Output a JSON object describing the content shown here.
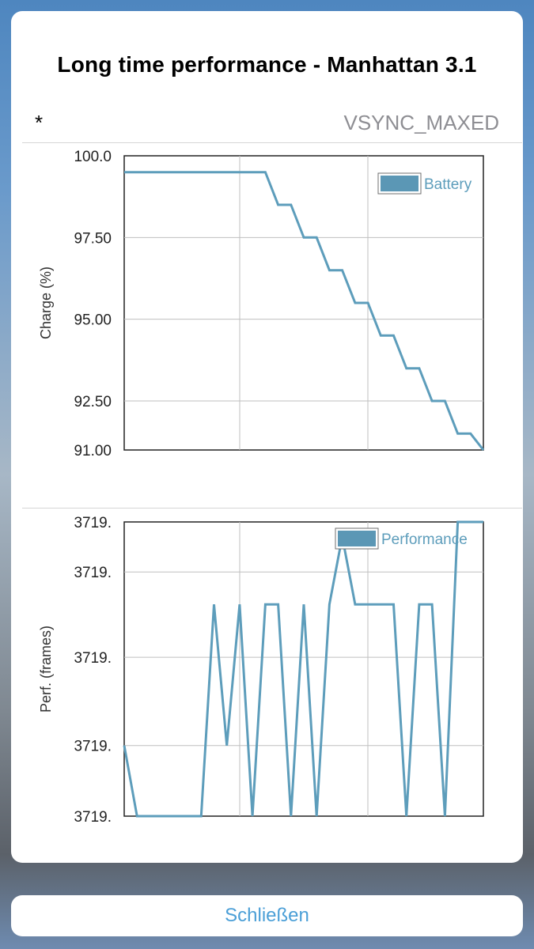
{
  "dialog": {
    "title": "Long time performance - Manhattan 3.1",
    "row_left": "*",
    "row_right": "VSYNC_MAXED",
    "close_label": "Schließen"
  },
  "colors": {
    "series": "#5d9dbb",
    "legend_fill": "#5b97b5",
    "accent": "#4b9fd7"
  },
  "chart_data": [
    {
      "type": "line",
      "ylabel": "Charge (%)",
      "ylim": [
        91.0,
        100.0
      ],
      "yticks": [
        "100.0",
        "97.50",
        "95.00",
        "92.50",
        "91.00"
      ],
      "ytick_values": [
        100.0,
        97.5,
        95.0,
        92.5,
        91.0
      ],
      "grid": true,
      "legend": "top-right",
      "series": [
        {
          "name": "Battery",
          "x": [
            0,
            11,
            12,
            13,
            14,
            15,
            16,
            17,
            18,
            19,
            20,
            21,
            22,
            23,
            24,
            25,
            26,
            27,
            28
          ],
          "y": [
            99.5,
            99.5,
            98.5,
            98.5,
            97.5,
            97.5,
            96.5,
            96.5,
            95.5,
            95.5,
            94.5,
            94.5,
            93.5,
            93.5,
            92.5,
            92.5,
            91.5,
            91.5,
            91.0
          ]
        }
      ]
    },
    {
      "type": "line",
      "ylabel": "Perf. (frames)",
      "yticks": [
        "3719.",
        "3719.",
        "3719.",
        "3719.",
        "3719."
      ],
      "ytick_fracs": [
        1.0,
        0.83,
        0.54,
        0.24,
        0.0
      ],
      "grid": true,
      "legend": "top-right",
      "series": [
        {
          "name": "Performance",
          "x": [
            0,
            1,
            6,
            7,
            8,
            9,
            10,
            11,
            12,
            13,
            14,
            15,
            16,
            17,
            18,
            19,
            20,
            21,
            22,
            23,
            24,
            25,
            26,
            27,
            28
          ],
          "y_frac": [
            0.24,
            0.0,
            0.0,
            0.72,
            0.24,
            0.72,
            0.0,
            0.72,
            0.72,
            0.0,
            0.72,
            0.0,
            0.72,
            0.95,
            0.72,
            0.72,
            0.72,
            0.72,
            0.0,
            0.72,
            0.72,
            0.0,
            1.0,
            1.0,
            1.0
          ]
        }
      ]
    }
  ]
}
